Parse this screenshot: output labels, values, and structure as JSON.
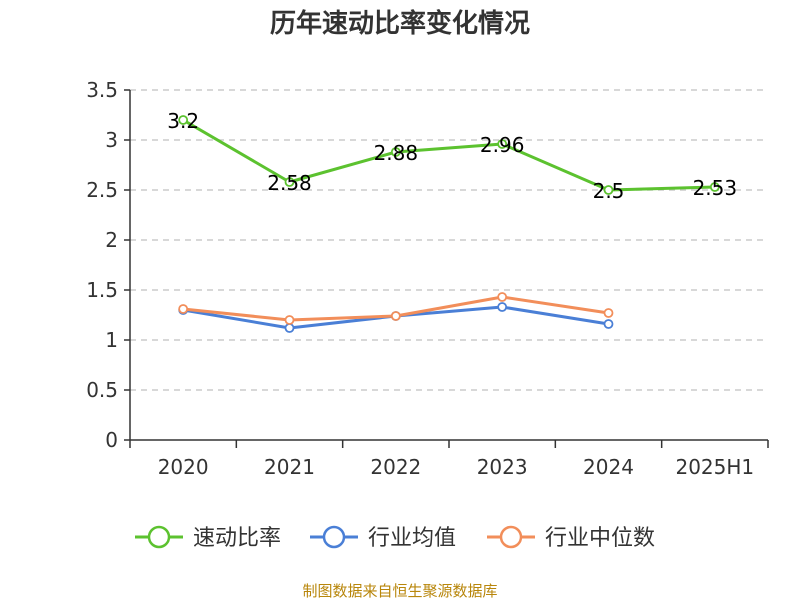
{
  "chart_data": {
    "type": "line",
    "title": "历年速动比率变化情况",
    "categories": [
      "2020",
      "2021",
      "2022",
      "2023",
      "2024",
      "2025H1"
    ],
    "ylim": [
      0,
      3.5
    ],
    "yticks": [
      "0",
      "0.5",
      "1",
      "1.5",
      "2",
      "2.5",
      "3",
      "3.5"
    ],
    "grid": true,
    "legend_position": "bottom",
    "series": [
      {
        "name": "速动比率",
        "color": "#5cc22f",
        "values": [
          3.2,
          2.58,
          2.88,
          2.96,
          2.5,
          2.53
        ],
        "labels": [
          "3.2",
          "2.58",
          "2.88",
          "2.96",
          "2.5",
          "2.53"
        ],
        "show_labels": true
      },
      {
        "name": "行业均值",
        "color": "#4a7fd6",
        "values": [
          1.3,
          1.12,
          1.24,
          1.33,
          1.16,
          null
        ],
        "show_labels": false
      },
      {
        "name": "行业中位数",
        "color": "#f28e5a",
        "values": [
          1.31,
          1.2,
          1.24,
          1.43,
          1.27,
          null
        ],
        "show_labels": false
      }
    ]
  },
  "footer": {
    "source": "制图数据来自恒生聚源数据库"
  }
}
